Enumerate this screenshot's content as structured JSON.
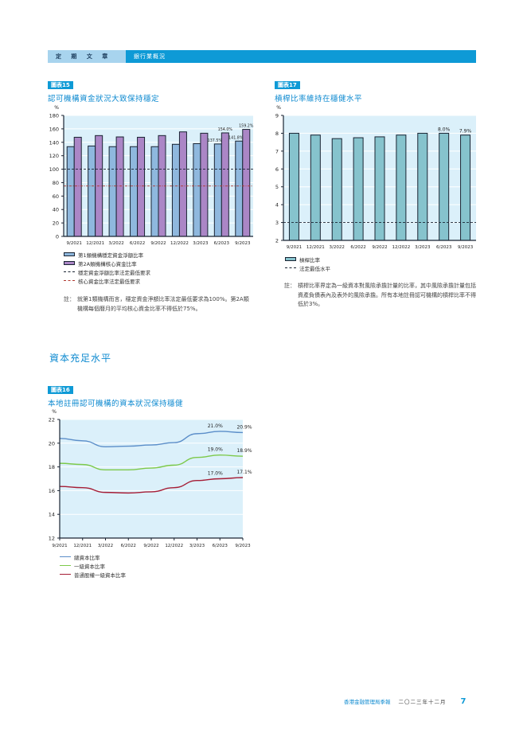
{
  "header": {
    "section_label": "定 期 文 章",
    "topic_label": "銀行業概況"
  },
  "chart15": {
    "tag": "圖表15",
    "title": "認可機構資金狀況大致保持穩定",
    "unit": "%",
    "legend": [
      "第1類機構穩定資金淨額比率",
      "第2A類機構核心資金比率",
      "穩定資金淨額比率法定最低要求",
      "核心資金比率法定最低要求"
    ],
    "note_prefix": "註：",
    "note": "就第1類機構而言，穩定資金淨額比率法定最低要求為100%。第2A類機構每個曆月的平均核心資金比率不得低於75%。",
    "data_labels": [
      "137.5%",
      "154.0%",
      "141.8%",
      "159.2%"
    ]
  },
  "chart17": {
    "tag": "圖表17",
    "title": "槓桿比率維持在穩健水平",
    "unit": "%",
    "legend": [
      "槓桿比率",
      "法定最低水平"
    ],
    "note_prefix": "註：",
    "note": "槓桿比率界定為一級資本對風險承擔計量的比率，其中風險承擔計量包括資產負債表內及表外的風險承擔。所有本地註冊認可機構的槓桿比率不得低於3%。",
    "data_labels": [
      "8.0%",
      "7.9%"
    ]
  },
  "section": {
    "title": "資本充足水平"
  },
  "chart16": {
    "tag": "圖表16",
    "title": "本地註冊認可機構的資本狀況保持穩健",
    "unit": "%",
    "legend": [
      "總資本比率",
      "一級資本比率",
      "普通股權一級資本比率"
    ],
    "data_labels": [
      "21.0%",
      "20.9%",
      "19.0%",
      "18.9%",
      "17.0%",
      "17.1%"
    ]
  },
  "footer": {
    "publication": "香港金融管理局季報",
    "date": "二〇二三年十二月",
    "page": "7"
  },
  "colors": {
    "accent": "#0e9ad6",
    "header_light": "#a8d4ee",
    "plot_bg": "#dbf0fa",
    "bar_blue": "#8fb8de",
    "bar_purple": "#ab86c6",
    "bar_teal": "#86c3cd",
    "line_blue": "#5b8ec9",
    "line_green": "#7dc94a",
    "line_red": "#a51d36"
  },
  "chart_data": [
    {
      "type": "bar",
      "title": "認可機構資金狀況大致保持穩定",
      "ylabel": "%",
      "ylim": [
        0,
        180
      ],
      "yticks": [
        0,
        20,
        40,
        60,
        80,
        100,
        120,
        140,
        160,
        180
      ],
      "categories": [
        "9/2021",
        "12/2021",
        "3/2022",
        "6/2022",
        "9/2022",
        "12/2022",
        "3/2023",
        "6/2023",
        "9/2023"
      ],
      "series": [
        {
          "name": "第1類機構穩定資金淨額比率",
          "values": [
            133.5,
            134.5,
            133.5,
            133.5,
            133.5,
            137.0,
            138.0,
            137.5,
            141.8
          ]
        },
        {
          "name": "第2A類機構核心資金比率",
          "values": [
            147.5,
            150.0,
            148.0,
            147.5,
            150.0,
            155.5,
            153.5,
            154.0,
            159.2
          ]
        }
      ],
      "reference_lines": [
        {
          "name": "穩定資金淨額比率法定最低要求",
          "value": 100,
          "style": "dashed"
        },
        {
          "name": "核心資金比率法定最低要求",
          "value": 75,
          "style": "dash-dot"
        }
      ],
      "grid": true,
      "legend_position": "bottom"
    },
    {
      "type": "bar",
      "title": "槓桿比率維持在穩健水平",
      "ylabel": "%",
      "ylim": [
        2,
        9
      ],
      "yticks": [
        2,
        3,
        4,
        5,
        6,
        7,
        8,
        9
      ],
      "categories": [
        "9/2021",
        "12/2021",
        "3/2022",
        "6/2022",
        "9/2022",
        "12/2022",
        "3/2023",
        "6/2023",
        "9/2023"
      ],
      "series": [
        {
          "name": "槓桿比率",
          "values": [
            8.0,
            7.9,
            7.7,
            7.75,
            7.8,
            7.9,
            8.0,
            8.0,
            7.9
          ]
        }
      ],
      "reference_lines": [
        {
          "name": "法定最低水平",
          "value": 3,
          "style": "dashed"
        }
      ],
      "grid": true,
      "legend_position": "bottom"
    },
    {
      "type": "line",
      "title": "本地註冊認可機構的資本狀況保持穩健",
      "ylabel": "%",
      "ylim": [
        12,
        22
      ],
      "yticks": [
        12,
        14,
        16,
        18,
        20,
        22
      ],
      "x": [
        "9/2021",
        "12/2021",
        "3/2022",
        "6/2022",
        "9/2022",
        "12/2022",
        "3/2023",
        "6/2023",
        "9/2023"
      ],
      "series": [
        {
          "name": "總資本比率",
          "values": [
            20.4,
            20.2,
            19.7,
            19.75,
            19.85,
            20.05,
            20.8,
            21.0,
            20.9
          ]
        },
        {
          "name": "一級資本比率",
          "values": [
            18.3,
            18.2,
            17.75,
            17.75,
            17.9,
            18.15,
            18.8,
            19.0,
            18.9
          ]
        },
        {
          "name": "普通股權一級資本比率",
          "values": [
            16.35,
            16.25,
            15.85,
            15.8,
            15.9,
            16.25,
            16.85,
            17.0,
            17.1
          ]
        }
      ],
      "grid": true,
      "legend_position": "bottom"
    }
  ]
}
